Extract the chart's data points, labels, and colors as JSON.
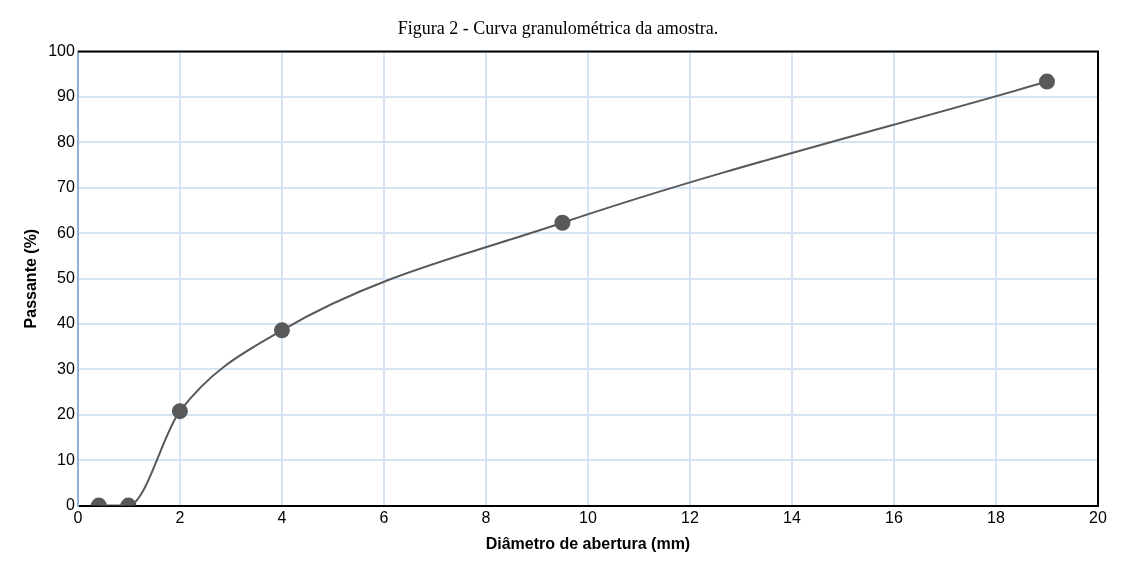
{
  "chart_data": {
    "type": "scatter",
    "title": "Figura 2 - Curva granulométrica da amostra.",
    "xlabel": "Diâmetro de abertura (mm)",
    "ylabel": "Passante (%)",
    "series": [
      {
        "type": "line",
        "color": "#595959",
        "x": [
          0.41,
          0.99,
          2,
          4,
          9.5,
          19
        ],
        "values": [
          0,
          0,
          20.8,
          38.6,
          62.3,
          93.4
        ]
      }
    ],
    "xlim": [
      0,
      20
    ],
    "xticks": [
      0,
      2,
      4,
      6,
      8,
      10,
      12,
      14,
      16,
      18,
      20
    ],
    "ylim": [
      0,
      100
    ],
    "yticks": [
      0,
      10,
      20,
      30,
      40,
      50,
      60,
      70,
      80,
      90,
      100
    ],
    "grid": true,
    "marker": "circle",
    "line_style": "solid"
  }
}
